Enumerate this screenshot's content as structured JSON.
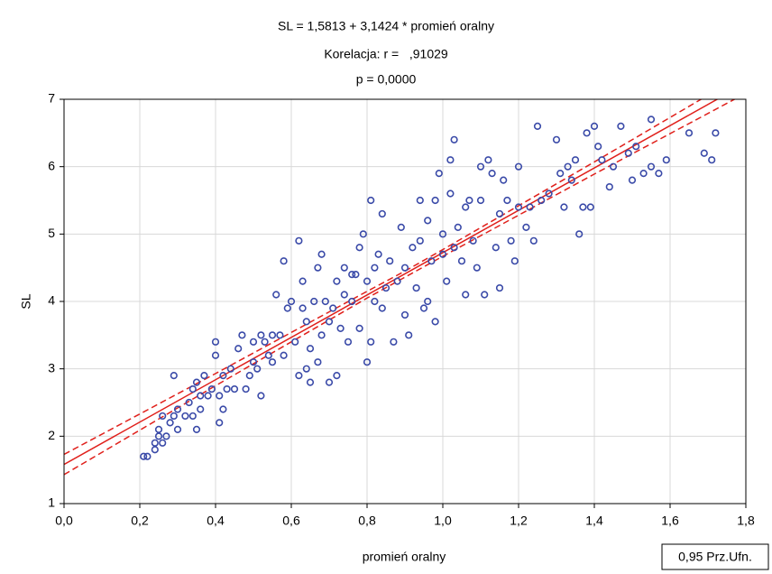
{
  "chart_data": {
    "type": "scatter",
    "title": "SL = 1,5813 + 3,1424 * promień oralny",
    "subtitle": "Korelacja: r =   ,91029",
    "annotation": "p = 0,0000",
    "x_label": "promień oralny",
    "y_label": "SL",
    "legend": "0,95 Prz.Ufn.",
    "legend_corner": "bottom-right",
    "color": "#3a4aa8",
    "line_color": "#e0201b",
    "grid": true,
    "xlim": [
      0,
      1.8
    ],
    "ylim": [
      1,
      7
    ],
    "xticks": [
      {
        "value": 0,
        "label": "0,0"
      },
      {
        "value": 0.2,
        "label": "0,2"
      },
      {
        "value": 0.4,
        "label": "0,4"
      },
      {
        "value": 0.6,
        "label": "0,6"
      },
      {
        "value": 0.8,
        "label": "0,8"
      },
      {
        "value": 1.0,
        "label": "1,0"
      },
      {
        "value": 1.2,
        "label": "1,2"
      },
      {
        "value": 1.4,
        "label": "1,4"
      },
      {
        "value": 1.6,
        "label": "1,6"
      },
      {
        "value": 1.8,
        "label": "1,8"
      }
    ],
    "yticks": [
      1,
      2,
      3,
      4,
      5,
      6,
      7
    ],
    "regression": {
      "intercept": 1.5813,
      "slope": 3.1424
    },
    "confidence_band": {
      "x": [
        0,
        0.2,
        0.4,
        0.6,
        0.8,
        0.9,
        1.0,
        1.2,
        1.4,
        1.6,
        1.8
      ],
      "lower": [
        1.43,
        2.09,
        2.75,
        3.4,
        4.05,
        4.36,
        4.67,
        5.28,
        5.89,
        6.49,
        7.09
      ],
      "upper": [
        1.73,
        2.33,
        2.93,
        3.54,
        4.15,
        4.45,
        4.77,
        5.42,
        6.07,
        6.73,
        7.39
      ]
    },
    "x": [
      0.22,
      0.21,
      0.24,
      0.24,
      0.25,
      0.25,
      0.26,
      0.27,
      0.26,
      0.28,
      0.29,
      0.3,
      0.29,
      0.3,
      0.32,
      0.33,
      0.34,
      0.34,
      0.35,
      0.35,
      0.36,
      0.36,
      0.37,
      0.38,
      0.39,
      0.4,
      0.4,
      0.41,
      0.41,
      0.42,
      0.42,
      0.43,
      0.44,
      0.45,
      0.46,
      0.47,
      0.48,
      0.49,
      0.5,
      0.5,
      0.51,
      0.52,
      0.52,
      0.53,
      0.54,
      0.55,
      0.55,
      0.56,
      0.57,
      0.58,
      0.58,
      0.59,
      0.6,
      0.61,
      0.62,
      0.62,
      0.63,
      0.63,
      0.64,
      0.64,
      0.65,
      0.65,
      0.66,
      0.67,
      0.67,
      0.68,
      0.68,
      0.69,
      0.7,
      0.7,
      0.71,
      0.72,
      0.72,
      0.73,
      0.74,
      0.74,
      0.75,
      0.76,
      0.76,
      0.77,
      0.78,
      0.78,
      0.79,
      0.8,
      0.8,
      0.81,
      0.81,
      0.82,
      0.82,
      0.83,
      0.84,
      0.84,
      0.85,
      0.86,
      0.87,
      0.88,
      0.89,
      0.9,
      0.9,
      0.91,
      0.92,
      0.93,
      0.94,
      0.94,
      0.95,
      0.96,
      0.96,
      0.97,
      0.98,
      0.98,
      0.99,
      1.0,
      1.0,
      1.01,
      1.02,
      1.02,
      1.03,
      1.03,
      1.04,
      1.05,
      1.06,
      1.06,
      1.07,
      1.08,
      1.09,
      1.1,
      1.1,
      1.11,
      1.12,
      1.13,
      1.14,
      1.15,
      1.15,
      1.16,
      1.17,
      1.18,
      1.19,
      1.2,
      1.2,
      1.22,
      1.23,
      1.24,
      1.25,
      1.26,
      1.28,
      1.3,
      1.31,
      1.32,
      1.33,
      1.34,
      1.35,
      1.36,
      1.37,
      1.38,
      1.39,
      1.4,
      1.41,
      1.42,
      1.44,
      1.45,
      1.47,
      1.49,
      1.5,
      1.51,
      1.53,
      1.55,
      1.55,
      1.57,
      1.59,
      1.65,
      1.69,
      1.71,
      1.72
    ],
    "values": [
      1.7,
      1.7,
      1.8,
      1.9,
      2.0,
      2.1,
      1.9,
      2.0,
      2.3,
      2.2,
      2.3,
      2.4,
      2.9,
      2.1,
      2.3,
      2.5,
      2.3,
      2.7,
      2.8,
      2.1,
      2.4,
      2.6,
      2.9,
      2.6,
      2.7,
      3.4,
      3.2,
      2.6,
      2.2,
      2.4,
      2.9,
      2.7,
      3.0,
      2.7,
      3.3,
      3.5,
      2.7,
      2.9,
      3.1,
      3.4,
      3.0,
      2.6,
      3.5,
      3.4,
      3.2,
      3.5,
      3.1,
      4.1,
      3.5,
      3.2,
      4.6,
      3.9,
      4.0,
      3.4,
      2.9,
      4.9,
      4.3,
      3.9,
      3.0,
      3.7,
      2.8,
      3.3,
      4.0,
      3.1,
      4.5,
      4.7,
      3.5,
      4.0,
      2.8,
      3.7,
      3.9,
      4.3,
      2.9,
      3.6,
      4.1,
      4.5,
      3.4,
      4.0,
      4.4,
      4.4,
      4.8,
      3.6,
      5.0,
      4.3,
      3.1,
      5.5,
      3.4,
      4.0,
      4.5,
      4.7,
      5.3,
      3.9,
      4.2,
      4.6,
      3.4,
      4.3,
      5.1,
      4.5,
      3.8,
      3.5,
      4.8,
      4.2,
      5.5,
      4.9,
      3.9,
      5.2,
      4.0,
      4.6,
      5.5,
      3.7,
      5.9,
      4.7,
      5.0,
      4.3,
      5.6,
      6.1,
      6.4,
      4.8,
      5.1,
      4.6,
      5.4,
      4.1,
      5.5,
      4.9,
      4.5,
      5.5,
      6.0,
      4.1,
      6.1,
      5.9,
      4.8,
      5.3,
      4.2,
      5.8,
      5.5,
      4.9,
      4.6,
      6.0,
      5.4,
      5.1,
      5.4,
      4.9,
      6.6,
      5.5,
      5.6,
      6.4,
      5.9,
      5.4,
      6.0,
      5.8,
      6.1,
      5.0,
      5.4,
      6.5,
      5.4,
      6.6,
      6.3,
      6.1,
      5.7,
      6.0,
      6.6,
      6.2,
      5.8,
      6.3,
      5.9,
      6.7,
      6.0,
      5.9,
      6.1,
      6.5,
      6.2,
      6.1,
      6.5
    ]
  }
}
